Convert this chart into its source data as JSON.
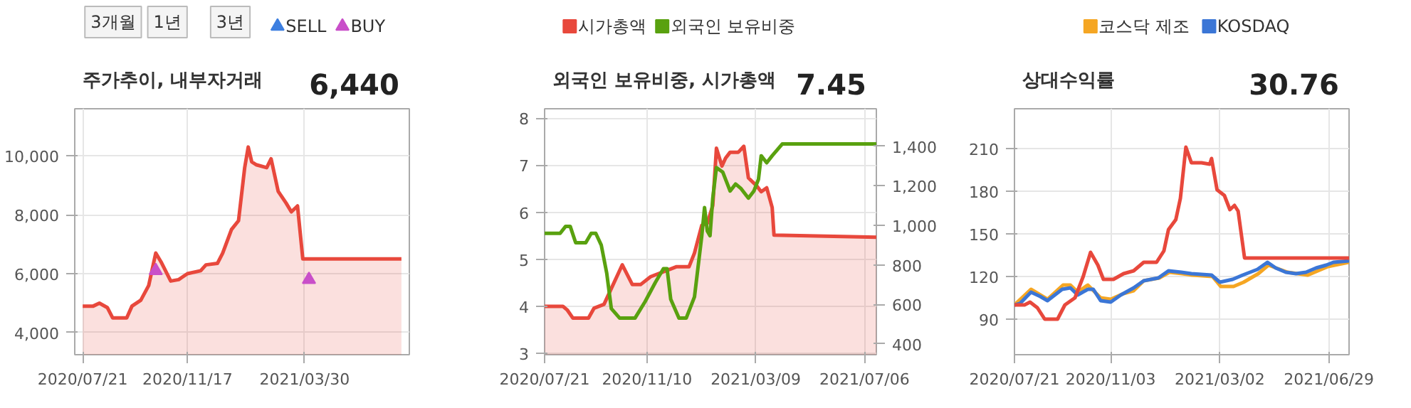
{
  "chart_data": [
    {
      "type": "area",
      "title": "주가추이, 내부자거래",
      "annotations": [
        "3개월",
        "1년",
        "3년",
        "6,440"
      ],
      "legend": "top",
      "grid": true,
      "xlim": [
        "2020-07-12",
        "2021-07-27"
      ],
      "xticks": [
        {
          "value": "2020-07-21",
          "label": "2020/07/21"
        },
        {
          "value": "2020-11-17",
          "label": "2020/11/17"
        },
        {
          "value": "2021-03-30",
          "label": "2021/03/30"
        }
      ],
      "ylim": [
        3250,
        11600
      ],
      "yticks": [
        {
          "value": 4000,
          "label": "4,000"
        },
        {
          "value": 6000,
          "label": "6,000"
        },
        {
          "value": 8000,
          "label": "8,000"
        },
        {
          "value": 10000,
          "label": "10,000"
        }
      ],
      "series": [
        {
          "color": "#e8483c",
          "x": [
            "2020-07-21",
            "2020-08-02",
            "2020-08-09",
            "2020-08-18",
            "2020-08-24",
            "2020-09-09",
            "2020-09-15",
            "2020-09-25",
            "2020-10-04",
            "2020-10-12",
            "2020-10-18",
            "2020-10-29",
            "2020-11-07",
            "2020-11-17",
            "2020-12-02",
            "2020-12-08",
            "2020-12-21",
            "2020-12-27",
            "2021-01-06",
            "2021-01-14",
            "2021-01-21",
            "2021-01-25",
            "2021-01-29",
            "2021-02-03",
            "2021-02-15",
            "2021-02-20",
            "2021-02-28",
            "2021-03-09",
            "2021-03-15",
            "2021-03-22",
            "2021-03-28",
            "2021-07-18"
          ],
          "values": [
            4900,
            4900,
            5000,
            4850,
            4500,
            4500,
            4900,
            5100,
            5600,
            6700,
            6400,
            5750,
            5800,
            6000,
            6100,
            6300,
            6350,
            6700,
            7500,
            7800,
            9600,
            10300,
            9800,
            9700,
            9600,
            9900,
            8800,
            8400,
            8100,
            8300,
            6500,
            6500
          ]
        },
        {
          "type": "scatter",
          "name": "SELL",
          "color": "#3d7fe0",
          "marker": "triangle"
        },
        {
          "type": "scatter",
          "name": "BUY",
          "color": "#c94fc9",
          "marker": "triangle",
          "x": [
            "2020-10-12",
            "2021-04-04"
          ],
          "values": [
            6100,
            5800
          ]
        }
      ]
    },
    {
      "type": "line",
      "title": "외국인 보유비중, 시가총액",
      "annotations": [
        "7.45"
      ],
      "legend": "top",
      "grid": true,
      "xlim": [
        "2020-07-21",
        "2021-07-19"
      ],
      "xticks": [
        {
          "value": "2020-07-21",
          "label": "2020/07/21"
        },
        {
          "value": "2020-11-10",
          "label": "2020/11/10"
        },
        {
          "value": "2021-03-09",
          "label": "2021/03/09"
        },
        {
          "value": "2021-07-06",
          "label": "2021/07/06"
        }
      ],
      "ylim": [
        2.97,
        8.2
      ],
      "yticks": [
        3,
        4,
        5,
        6,
        7,
        8
      ],
      "y2lim": [
        345,
        1590
      ],
      "y2ticks": [
        400,
        600,
        800,
        {
          "value": 1000,
          "label": "1,000"
        },
        {
          "value": 1200,
          "label": "1,200"
        },
        {
          "value": 1400,
          "label": "1,400"
        }
      ],
      "series": [
        {
          "name": "시가총액",
          "type": "area",
          "axis": "y2",
          "color": "#e8483c",
          "x": [
            "2020-07-21",
            "2020-08-10",
            "2020-08-15",
            "2020-08-21",
            "2020-09-07",
            "2020-09-13",
            "2020-09-24",
            "2020-10-02",
            "2020-10-14",
            "2020-10-25",
            "2020-11-03",
            "2020-11-14",
            "2020-12-01",
            "2020-12-12",
            "2020-12-26",
            "2021-01-01",
            "2021-01-09",
            "2021-01-15",
            "2021-01-21",
            "2021-01-25",
            "2021-01-31",
            "2021-02-04",
            "2021-02-09",
            "2021-02-18",
            "2021-02-24",
            "2021-03-01",
            "2021-03-10",
            "2021-03-15",
            "2021-03-21",
            "2021-03-27",
            "2021-03-29",
            "2021-07-19"
          ],
          "values": [
            590,
            590,
            570,
            530,
            530,
            580,
            600,
            680,
            800,
            700,
            700,
            740,
            770,
            790,
            790,
            860,
            1000,
            1010,
            1100,
            1390,
            1300,
            1340,
            1370,
            1370,
            1400,
            1240,
            1200,
            1170,
            1190,
            1090,
            950,
            940
          ]
        },
        {
          "name": "외국인 보유비중",
          "color": "#59a10f",
          "x": [
            "2020-07-21",
            "2020-08-07",
            "2020-08-13",
            "2020-08-18",
            "2020-08-24",
            "2020-09-04",
            "2020-09-10",
            "2020-09-15",
            "2020-09-21",
            "2020-09-27",
            "2020-10-02",
            "2020-10-11",
            "2020-10-28",
            "2020-11-08",
            "2020-11-19",
            "2020-11-28",
            "2020-12-02",
            "2020-12-06",
            "2020-12-15",
            "2020-12-23",
            "2021-01-01",
            "2021-01-09",
            "2021-01-12",
            "2021-01-15",
            "2021-01-18",
            "2021-01-21",
            "2021-01-25",
            "2021-02-01",
            "2021-02-09",
            "2021-02-15",
            "2021-02-21",
            "2021-03-01",
            "2021-03-07",
            "2021-03-12",
            "2021-03-15",
            "2021-03-21",
            "2021-03-27",
            "2021-04-07",
            "2021-07-19"
          ],
          "values": [
            5.55,
            5.55,
            5.7,
            5.7,
            5.35,
            5.35,
            5.55,
            5.55,
            5.3,
            4.7,
            3.95,
            3.75,
            3.75,
            4.1,
            4.5,
            4.8,
            4.8,
            4.15,
            3.75,
            3.75,
            4.2,
            5.5,
            6.1,
            5.6,
            5.5,
            6.3,
            6.95,
            6.85,
            6.45,
            6.6,
            6.5,
            6.3,
            6.45,
            6.7,
            7.2,
            7.05,
            7.2,
            7.45,
            7.45
          ]
        }
      ]
    },
    {
      "type": "line",
      "title": "상대수익률",
      "annotations": [
        "30.76"
      ],
      "legend": "top",
      "grid": true,
      "xlim": [
        "2020-07-21",
        "2021-07-21"
      ],
      "xticks": [
        {
          "value": "2020-07-21",
          "label": "2020/07/21"
        },
        {
          "value": "2020-11-03",
          "label": "2020/11/03"
        },
        {
          "value": "2021-03-02",
          "label": "2021/03/02"
        },
        {
          "value": "2021-06-29",
          "label": "2021/06/29"
        }
      ],
      "ylim": [
        65,
        238
      ],
      "yticks": [
        90,
        120,
        150,
        180,
        210
      ],
      "series": [
        {
          "name": "코스닥 제조",
          "color": "#f5a623",
          "x": [
            "2020-07-21",
            "2020-08-08",
            "2020-08-26",
            "2020-09-12",
            "2020-09-20",
            "2020-09-28",
            "2020-10-09",
            "2020-10-23",
            "2020-11-03",
            "2020-11-17",
            "2020-11-28",
            "2020-12-09",
            "2020-12-26",
            "2021-01-06",
            "2021-01-20",
            "2021-01-31",
            "2021-02-22",
            "2021-03-03",
            "2021-03-17",
            "2021-03-28",
            "2021-04-13",
            "2021-04-24",
            "2021-05-15",
            "2021-06-06",
            "2021-06-28",
            "2021-07-21"
          ],
          "values": [
            100,
            111,
            104,
            114,
            114,
            109,
            114,
            105,
            104,
            108,
            110,
            117,
            119,
            123,
            122,
            121,
            120,
            113,
            113,
            116,
            122,
            128,
            123,
            121,
            127,
            130
          ]
        },
        {
          "name": "KOSDAQ",
          "color": "#3b76d6",
          "x": [
            "2020-07-21",
            "2020-07-27",
            "2020-08-08",
            "2020-08-18",
            "2020-08-26",
            "2020-09-03",
            "2020-09-11",
            "2020-09-20",
            "2020-09-28",
            "2020-10-09",
            "2020-10-15",
            "2020-10-23",
            "2020-11-03",
            "2020-11-14",
            "2020-11-28",
            "2020-12-09",
            "2020-12-25",
            "2021-01-05",
            "2021-01-19",
            "2021-01-30",
            "2021-02-21",
            "2021-03-02",
            "2021-03-16",
            "2021-03-27",
            "2021-04-12",
            "2021-04-23",
            "2021-05-02",
            "2021-05-13",
            "2021-05-24",
            "2021-06-04",
            "2021-06-15",
            "2021-06-26",
            "2021-07-04",
            "2021-07-21"
          ],
          "values": [
            100,
            101,
            109,
            106,
            103,
            107,
            111,
            112,
            107,
            111,
            111,
            103,
            102,
            107,
            112,
            117,
            119,
            124,
            123,
            122,
            121,
            116,
            118,
            121,
            125,
            130,
            126,
            123,
            122,
            123,
            126,
            128,
            130,
            131
          ]
        },
        {
          "color": "#e8483c",
          "x": [
            "2020-07-21",
            "2020-08-01",
            "2020-08-07",
            "2020-08-15",
            "2020-08-23",
            "2020-09-06",
            "2020-09-14",
            "2020-09-25",
            "2020-10-04",
            "2020-10-12",
            "2020-10-20",
            "2020-10-26",
            "2020-11-06",
            "2020-11-17",
            "2020-11-28",
            "2020-12-09",
            "2020-12-23",
            "2020-12-31",
            "2021-01-05",
            "2021-01-13",
            "2021-01-18",
            "2021-01-24",
            "2021-01-30",
            "2021-02-10",
            "2021-02-19",
            "2021-02-21",
            "2021-02-27",
            "2021-03-07",
            "2021-03-13",
            "2021-03-18",
            "2021-03-22",
            "2021-03-29",
            "2021-07-21"
          ],
          "values": [
            100,
            100,
            102,
            98,
            90,
            90,
            100,
            105,
            120,
            137,
            128,
            118,
            118,
            122,
            124,
            130,
            130,
            138,
            153,
            160,
            175,
            211,
            200,
            200,
            199,
            203,
            181,
            177,
            167,
            170,
            166,
            133,
            133
          ]
        }
      ]
    }
  ]
}
